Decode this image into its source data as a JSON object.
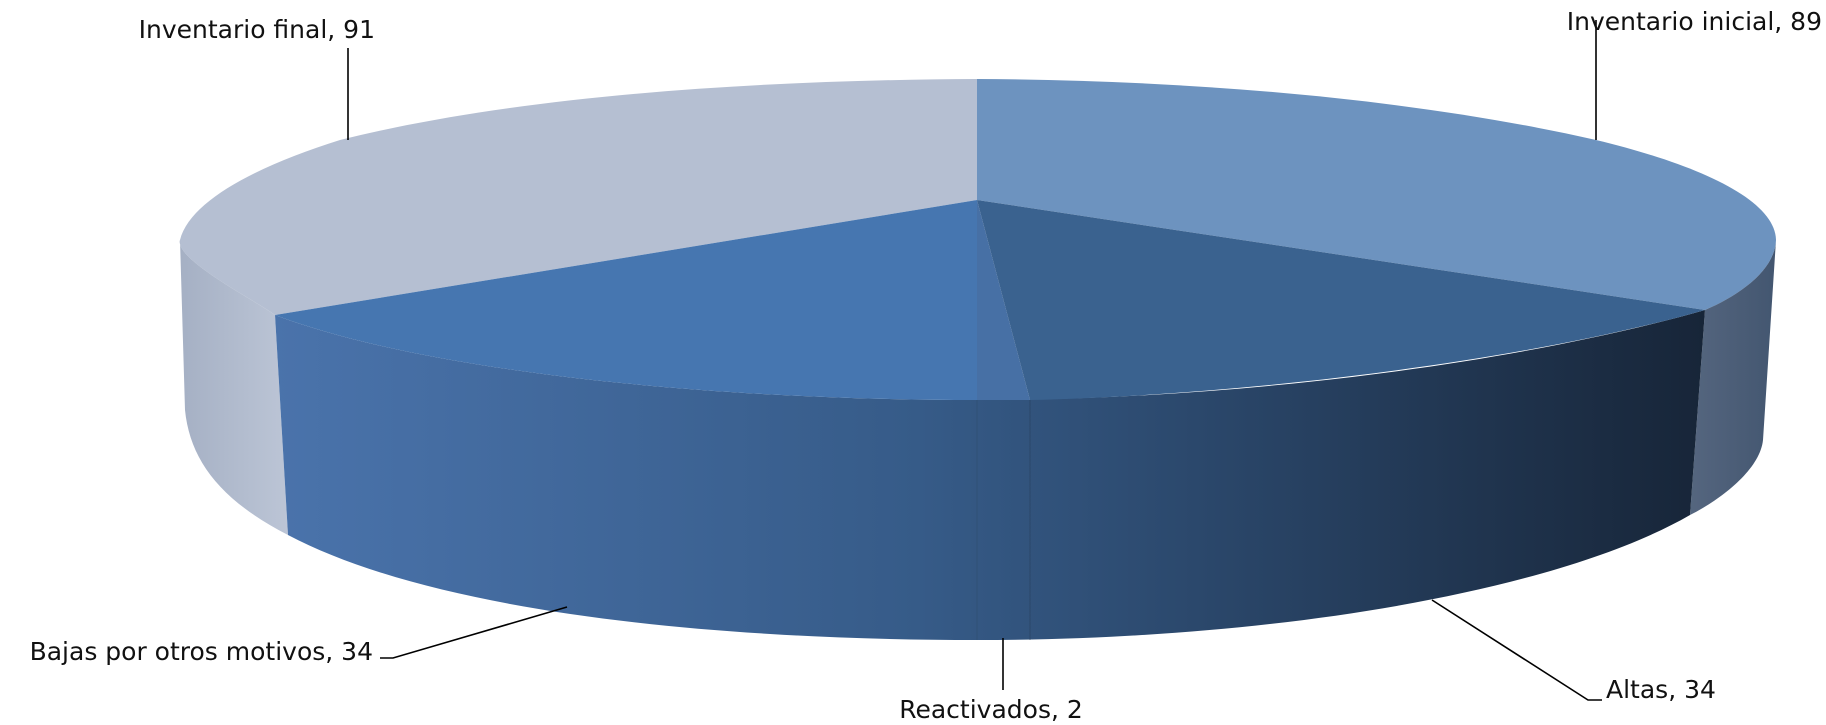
{
  "chart_data": {
    "type": "pie",
    "style": "3d",
    "legend": "none",
    "series": [
      {
        "categories": [
          "Inventario inicial",
          "Altas",
          "Reactivados",
          "Bajas por otros motivos",
          "Inventario final"
        ],
        "values": [
          89,
          34,
          2,
          34,
          91
        ]
      }
    ],
    "data_labels": [
      "Inventario inicial, 89",
      "Altas, 34",
      "Reactivados, 2",
      "Bajas por otros motivos, 34",
      "Inventario final, 91"
    ]
  },
  "colors": {
    "Inventario inicial": "#6d93bf",
    "Altas": "#3a628f",
    "Reactivados": "#4770a5",
    "Bajas por otros motivos": "#4676b0",
    "Inventario final": "#b5bfd2"
  }
}
